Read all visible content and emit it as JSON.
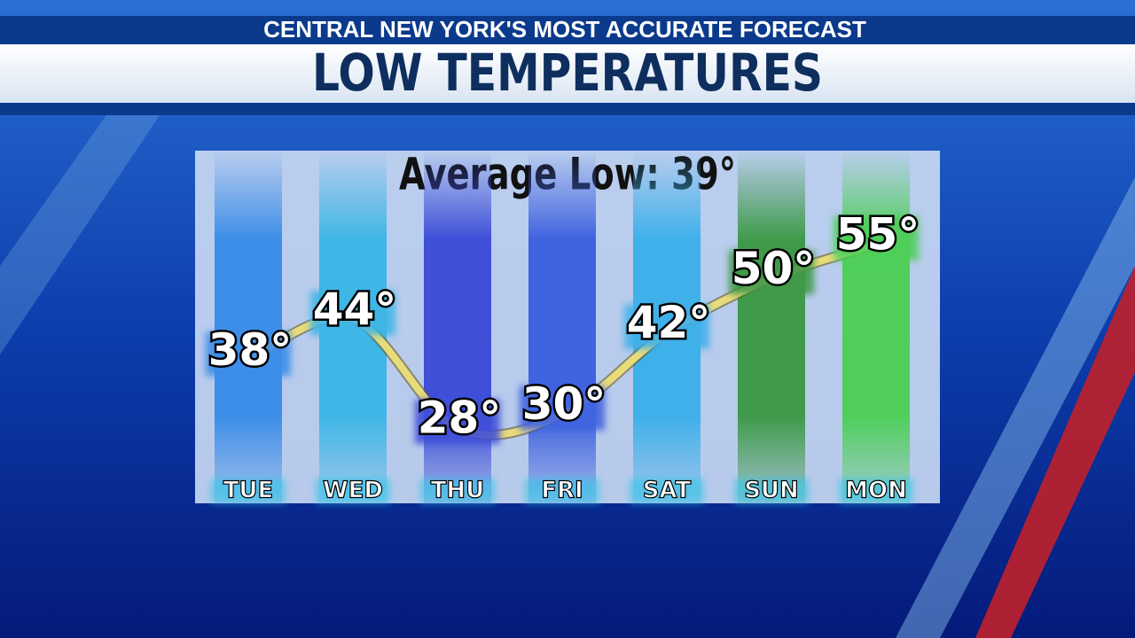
{
  "chart_data": {
    "type": "line",
    "title": "CENTRAL NEW YORK'S MOST ACCURATE FORECAST",
    "subtitle": "LOW TEMPERATURES",
    "annotation": "Average Low: 39°",
    "categories": [
      "TUE",
      "WED",
      "THU",
      "FRI",
      "SAT",
      "SUN",
      "MON"
    ],
    "values": [
      38,
      44,
      28,
      30,
      42,
      50,
      55
    ],
    "value_labels": [
      "38°",
      "44°",
      "28°",
      "30°",
      "42°",
      "50°",
      "55°"
    ],
    "color": "#e8dc7a",
    "colors": [
      "#3d8ee8",
      "#3fb6e6",
      "#3f4fd8",
      "#4063e0",
      "#3fb0ea",
      "#3f9a4a",
      "#4fcf5a"
    ]
  }
}
